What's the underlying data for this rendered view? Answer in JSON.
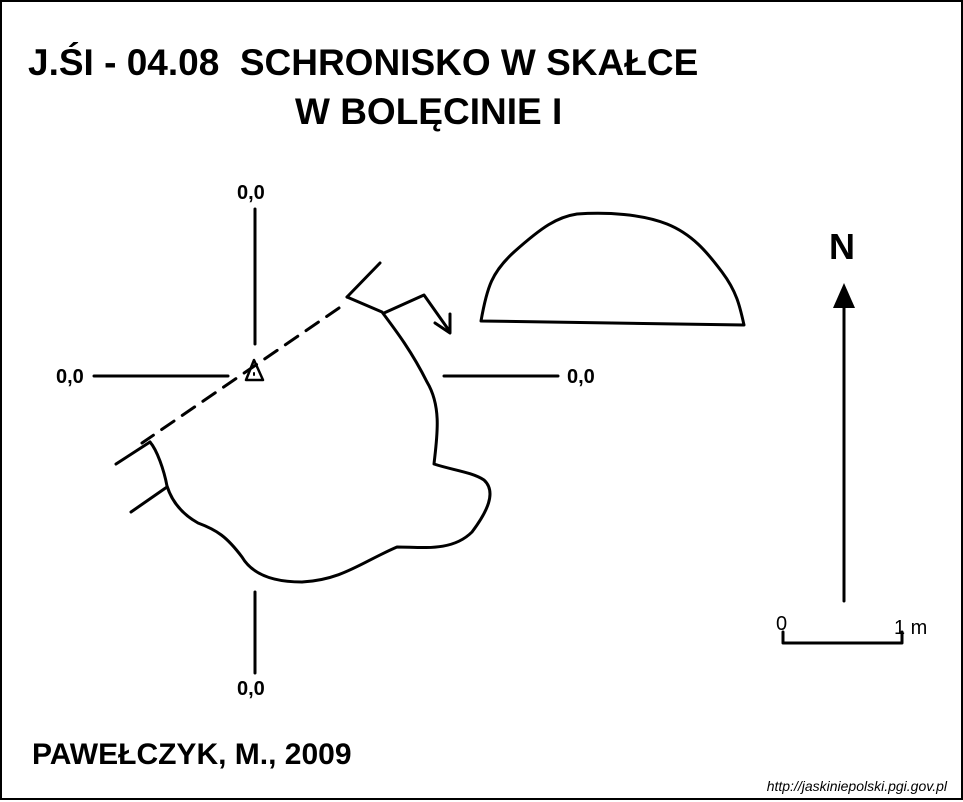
{
  "title": {
    "line1": "J.ŚI - 04.08  SCHRONISKO W SKAŁCE",
    "line2": "W BOLĘCINIE I"
  },
  "reference_labels": {
    "top": "0,0",
    "left": "0,0",
    "right": "0,0",
    "bottom": "0,0"
  },
  "north_label": "N",
  "scale": {
    "start": "0",
    "end": "1 m"
  },
  "author": "PAWEŁCZYK, M., 2009",
  "source_url": "http://jaskiniepolski.pgi.gov.pl"
}
